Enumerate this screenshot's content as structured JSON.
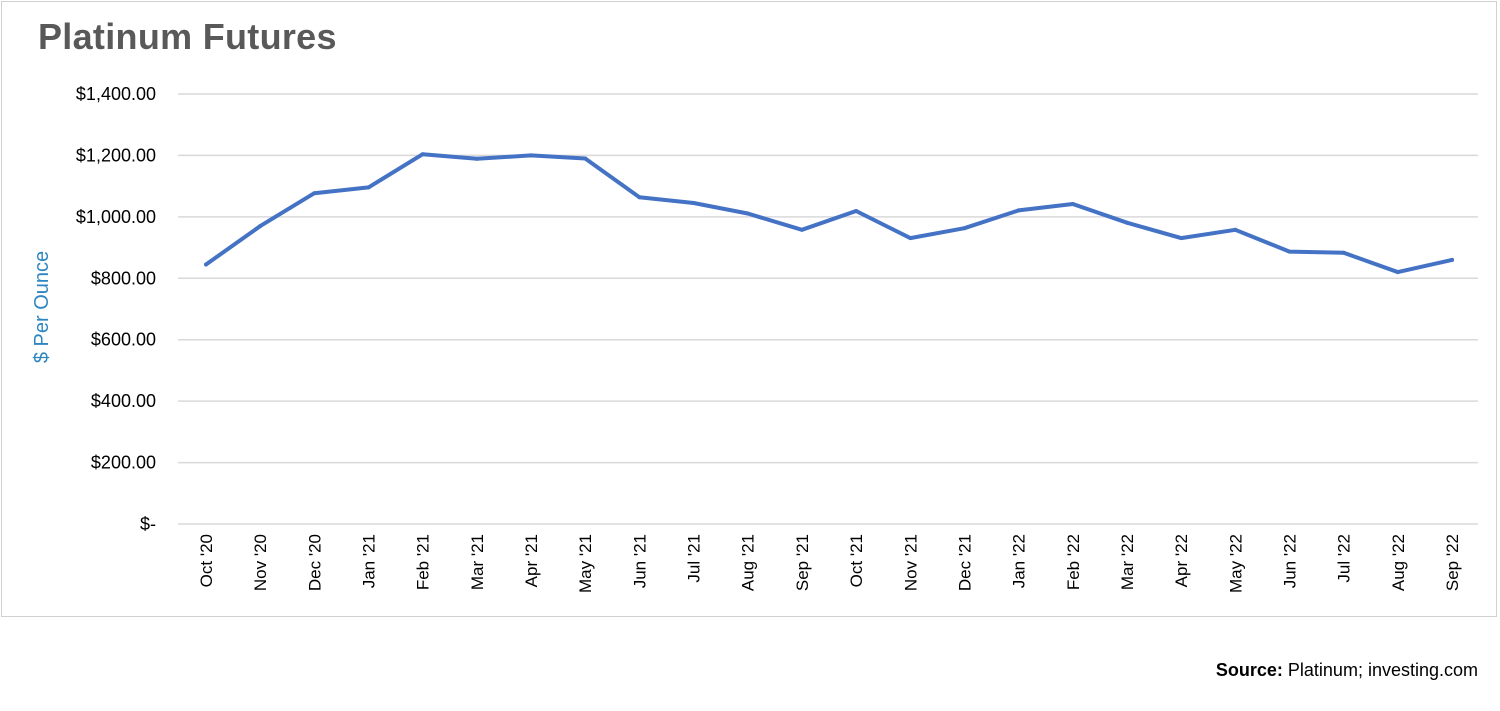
{
  "chart_data": {
    "type": "line",
    "title": "Platinum Futures",
    "ylabel": "$ Per Ounce",
    "xlabel": "",
    "categories": [
      "Oct '20",
      "Nov '20",
      "Dec '20",
      "Jan '21",
      "Feb '21",
      "Mar '21",
      "Apr '21",
      "May '21",
      "Jun '21",
      "Jul '21",
      "Aug '21",
      "Sep '21",
      "Oct '21",
      "Nov '21",
      "Dec '21",
      "Jan '22",
      "Feb '22",
      "Mar '22",
      "Apr '22",
      "May '22",
      "Jun '22",
      "Jul '22",
      "Aug '22",
      "Sep '22"
    ],
    "series": [
      {
        "values": [
          845,
          970,
          1077,
          1096,
          1204,
          1189,
          1200,
          1190,
          1064,
          1045,
          1011,
          958,
          1019,
          931,
          963,
          1021,
          1042,
          981,
          931,
          958,
          887,
          883,
          820,
          860
        ]
      }
    ],
    "ylim": [
      0,
      1400
    ],
    "yticks": [
      0,
      200,
      400,
      600,
      800,
      1000,
      1200,
      1400
    ],
    "ytick_labels": [
      "$-",
      "$200.00",
      "$400.00",
      "$600.00",
      "$800.00",
      "$1,000.00",
      "$1,200.00",
      "$1,400.00"
    ],
    "grid": true,
    "legend": "none",
    "line_color": "#4472c4",
    "ylabel_color": "#2e86c1",
    "gridline_color": "#d9d9d9"
  },
  "source": {
    "label": "Source:",
    "text": " Platinum; investing.com"
  }
}
